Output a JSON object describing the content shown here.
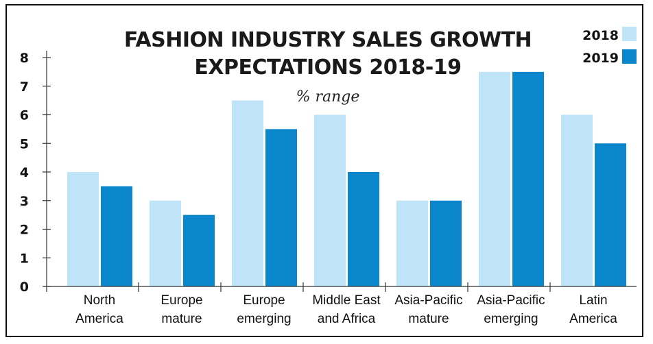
{
  "chart_data": {
    "type": "bar",
    "title_lines": [
      "FASHION INDUSTRY SALES GROWTH",
      "EXPECTATIONS 2018-19"
    ],
    "subtitle": "% range",
    "categories": [
      [
        "North",
        "America"
      ],
      [
        "Europe",
        "mature"
      ],
      [
        "Europe",
        "emerging"
      ],
      [
        "Middle East",
        "and Africa"
      ],
      [
        "Asia-Pacific",
        "mature"
      ],
      [
        "Asia-Pacific",
        "emerging"
      ],
      [
        "Latin",
        "America"
      ]
    ],
    "series": [
      {
        "name": "2018",
        "color": "#bfe4f8",
        "values": [
          4,
          3,
          6.5,
          6,
          3,
          7.5,
          6
        ]
      },
      {
        "name": "2019",
        "color": "#0a86cc",
        "values": [
          3.5,
          2.5,
          5.5,
          4,
          3,
          7.5,
          5
        ]
      }
    ],
    "ylim": [
      0,
      8
    ],
    "yticks": [
      0,
      1,
      2,
      3,
      4,
      5,
      6,
      7,
      8
    ],
    "legend_position": "top-right",
    "grid": false
  }
}
